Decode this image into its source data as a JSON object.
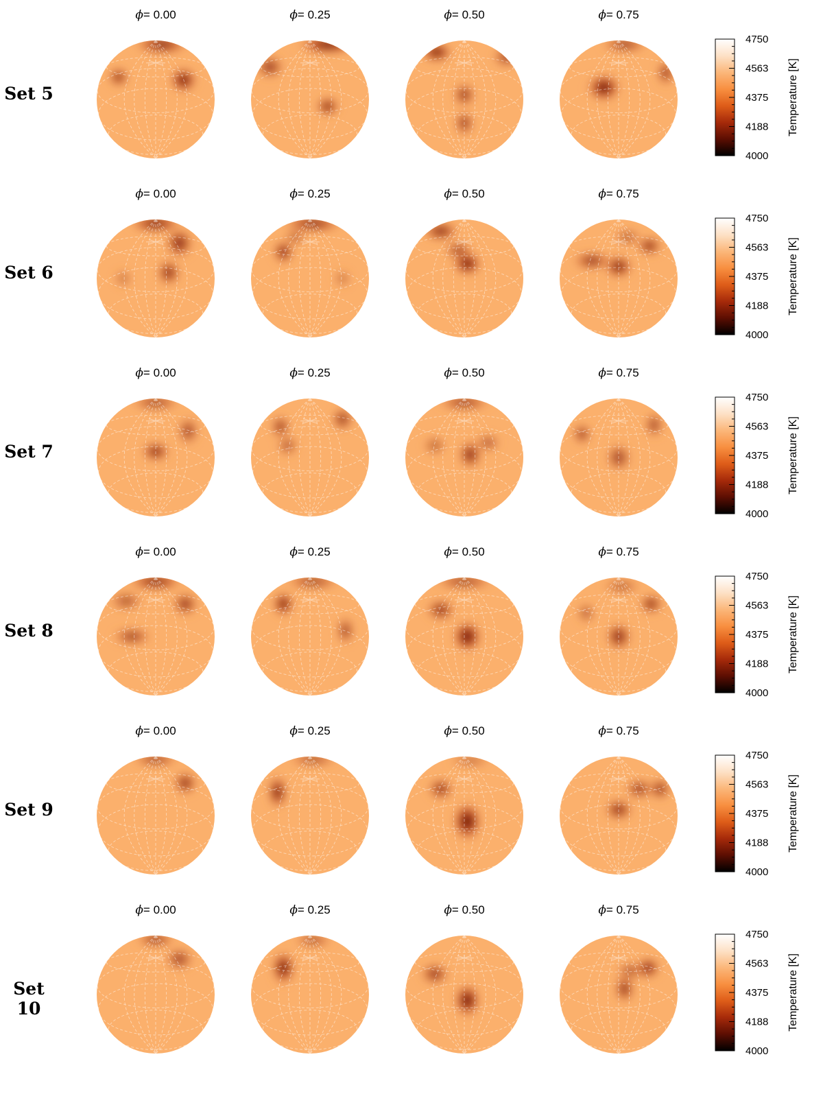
{
  "colors": {
    "photosphere": "#fbb06c",
    "spot_mid": "#b2350f",
    "spot_core": "#2a0200",
    "grid": "#ffffff",
    "colormap": [
      "#000000",
      "#5c0e02",
      "#a62a0a",
      "#de5d19",
      "#f88f40",
      "#fbb77a",
      "#fde1c6",
      "#ffffff"
    ]
  },
  "colorbar": {
    "title": "Temperature [K]",
    "ticks": [
      "4750",
      "4563",
      "4375",
      "4188",
      "4000"
    ],
    "range": [
      4000,
      4750
    ]
  },
  "phase_symbol": "ϕ",
  "phases": [
    "= 0.00",
    "= 0.25",
    "= 0.50",
    "= 0.75"
  ],
  "sets": [
    {
      "label": "Set 5",
      "globes": [
        {
          "spots": [
            [
              0.1,
              0.93,
              0.5,
              0.16,
              0.85
            ],
            [
              -0.63,
              0.38,
              0.17,
              0.16,
              0.9
            ],
            [
              0.47,
              0.33,
              0.24,
              0.22,
              0.95
            ]
          ]
        },
        {
          "spots": [
            [
              0.3,
              0.93,
              0.55,
              0.15,
              1.0
            ],
            [
              -0.68,
              0.55,
              0.25,
              0.2,
              0.75
            ],
            [
              0.3,
              -0.12,
              0.2,
              0.16,
              0.92
            ]
          ]
        },
        {
          "spots": [
            [
              -0.47,
              0.8,
              0.28,
              0.16,
              1.0
            ],
            [
              0.72,
              0.72,
              0.25,
              0.18,
              0.7
            ],
            [
              0.0,
              0.08,
              0.18,
              0.2,
              0.82
            ],
            [
              0.0,
              -0.4,
              0.15,
              0.22,
              0.82
            ]
          ]
        },
        {
          "spots": [
            [
              0.1,
              0.93,
              0.42,
              0.12,
              0.8
            ],
            [
              0.8,
              0.45,
              0.15,
              0.22,
              0.8
            ],
            [
              -0.25,
              0.2,
              0.3,
              0.24,
              0.97
            ]
          ]
        }
      ]
    },
    {
      "label": "Set 6",
      "globes": [
        {
          "spots": [
            [
              0.0,
              0.93,
              0.48,
              0.14,
              0.95
            ],
            [
              0.4,
              0.6,
              0.24,
              0.26,
              0.85
            ],
            [
              0.22,
              0.1,
              0.2,
              0.22,
              0.85
            ],
            [
              -0.55,
              0.0,
              0.16,
              0.15,
              0.45
            ]
          ]
        },
        {
          "spots": [
            [
              0.05,
              0.93,
              0.55,
              0.14,
              0.85
            ],
            [
              -0.45,
              0.45,
              0.17,
              0.2,
              0.95
            ],
            [
              -0.25,
              0.7,
              0.2,
              0.12,
              0.6
            ],
            [
              0.55,
              0.0,
              0.15,
              0.15,
              0.45
            ]
          ]
        },
        {
          "spots": [
            [
              -0.4,
              0.8,
              0.32,
              0.15,
              0.9
            ],
            [
              0.05,
              0.25,
              0.25,
              0.2,
              1.0
            ],
            [
              -0.1,
              0.48,
              0.25,
              0.15,
              0.7
            ]
          ]
        },
        {
          "spots": [
            [
              -0.45,
              0.3,
              0.35,
              0.15,
              0.8
            ],
            [
              0.0,
              0.2,
              0.25,
              0.2,
              0.9
            ],
            [
              0.52,
              0.55,
              0.22,
              0.15,
              0.9
            ],
            [
              0.15,
              0.7,
              0.25,
              0.14,
              0.55
            ]
          ]
        }
      ]
    },
    {
      "label": "Set 7",
      "globes": [
        {
          "spots": [
            [
              0.0,
              0.93,
              0.45,
              0.12,
              0.75
            ],
            [
              0.0,
              0.1,
              0.25,
              0.16,
              0.9
            ],
            [
              0.55,
              0.45,
              0.18,
              0.25,
              0.7
            ]
          ]
        },
        {
          "spots": [
            [
              -0.5,
              0.52,
              0.16,
              0.2,
              0.8
            ],
            [
              -0.38,
              0.2,
              0.18,
              0.18,
              0.6
            ],
            [
              0.55,
              0.65,
              0.18,
              0.2,
              0.8
            ]
          ]
        },
        {
          "spots": [
            [
              0.0,
              0.93,
              0.48,
              0.12,
              0.8
            ],
            [
              -0.5,
              0.2,
              0.2,
              0.16,
              0.55
            ],
            [
              0.1,
              0.05,
              0.2,
              0.25,
              0.85
            ],
            [
              0.4,
              0.25,
              0.22,
              0.15,
              0.6
            ]
          ]
        },
        {
          "spots": [
            [
              -0.62,
              0.4,
              0.15,
              0.18,
              0.8
            ],
            [
              0.0,
              0.0,
              0.22,
              0.25,
              0.7
            ],
            [
              0.6,
              0.55,
              0.15,
              0.22,
              0.75
            ]
          ]
        }
      ]
    },
    {
      "label": "Set 8",
      "globes": [
        {
          "spots": [
            [
              0.0,
              0.93,
              0.5,
              0.14,
              0.9
            ],
            [
              -0.5,
              0.6,
              0.3,
              0.16,
              0.6
            ],
            [
              0.5,
              0.55,
              0.22,
              0.2,
              0.8
            ],
            [
              -0.4,
              0.0,
              0.35,
              0.14,
              0.75
            ]
          ]
        },
        {
          "spots": [
            [
              -0.45,
              0.55,
              0.18,
              0.22,
              0.95
            ],
            [
              0.05,
              0.93,
              0.5,
              0.12,
              0.75
            ],
            [
              0.6,
              0.1,
              0.14,
              0.25,
              0.75
            ]
          ]
        },
        {
          "spots": [
            [
              0.0,
              0.93,
              0.55,
              0.12,
              0.75
            ],
            [
              -0.4,
              0.45,
              0.25,
              0.18,
              0.85
            ],
            [
              0.05,
              0.0,
              0.25,
              0.28,
              1.0
            ]
          ]
        },
        {
          "spots": [
            [
              -0.55,
              0.4,
              0.15,
              0.18,
              0.6
            ],
            [
              0.55,
              0.55,
              0.2,
              0.16,
              0.9
            ],
            [
              0.0,
              0.0,
              0.22,
              0.25,
              0.85
            ],
            [
              0.05,
              0.85,
              0.35,
              0.12,
              0.55
            ]
          ]
        }
      ]
    },
    {
      "label": "Set 9",
      "globes": [
        {
          "spots": [
            [
              0.0,
              0.95,
              0.42,
              0.1,
              0.85
            ],
            [
              0.5,
              0.55,
              0.2,
              0.2,
              0.85
            ]
          ]
        },
        {
          "spots": [
            [
              -0.55,
              0.4,
              0.16,
              0.3,
              0.95
            ],
            [
              0.05,
              0.95,
              0.45,
              0.1,
              0.75
            ]
          ]
        },
        {
          "spots": [
            [
              -0.4,
              0.45,
              0.22,
              0.18,
              0.85
            ],
            [
              0.05,
              -0.1,
              0.25,
              0.35,
              1.0
            ],
            [
              0.1,
              0.93,
              0.4,
              0.1,
              0.5
            ]
          ]
        },
        {
          "spots": [
            [
              0.0,
              0.1,
              0.25,
              0.18,
              0.85
            ],
            [
              0.35,
              0.45,
              0.25,
              0.16,
              0.8
            ],
            [
              0.7,
              0.45,
              0.18,
              0.18,
              0.85
            ]
          ]
        }
      ]
    },
    {
      "label": "Set 10",
      "globes": [
        {
          "spots": [
            [
              0.0,
              0.93,
              0.35,
              0.1,
              0.95
            ],
            [
              0.4,
              0.6,
              0.25,
              0.2,
              0.7
            ]
          ]
        },
        {
          "spots": [
            [
              -0.45,
              0.45,
              0.2,
              0.3,
              0.97
            ],
            [
              0.05,
              0.92,
              0.35,
              0.1,
              0.75
            ]
          ]
        },
        {
          "spots": [
            [
              -0.5,
              0.35,
              0.25,
              0.18,
              0.8
            ],
            [
              0.05,
              -0.1,
              0.22,
              0.3,
              1.0
            ]
          ]
        },
        {
          "spots": [
            [
              0.5,
              0.45,
              0.2,
              0.18,
              0.95
            ],
            [
              0.1,
              0.1,
              0.16,
              0.25,
              0.85
            ],
            [
              0.2,
              0.4,
              0.25,
              0.15,
              0.6
            ]
          ]
        }
      ]
    }
  ]
}
